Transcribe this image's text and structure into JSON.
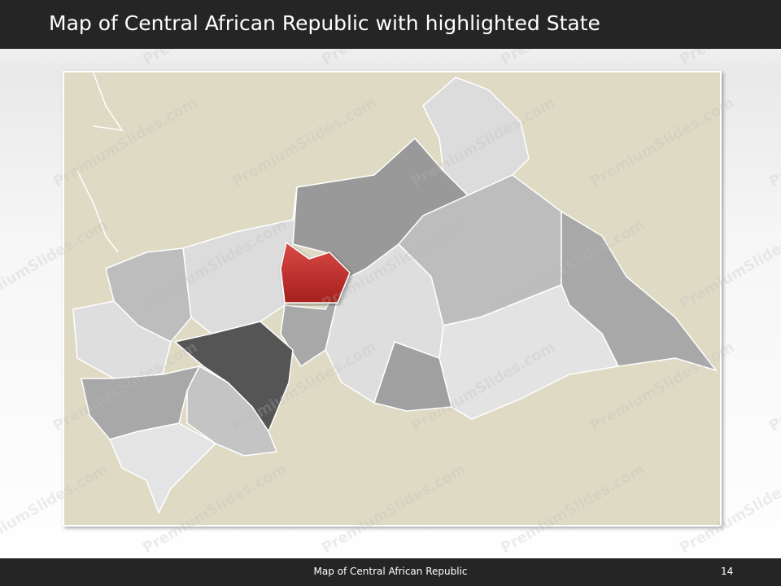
{
  "header": {
    "title": "Map of Central African Republic with highlighted State"
  },
  "footer": {
    "caption": "Map of Central African Republic",
    "page_number": "14"
  },
  "watermark": "PremiumSlides.com"
}
